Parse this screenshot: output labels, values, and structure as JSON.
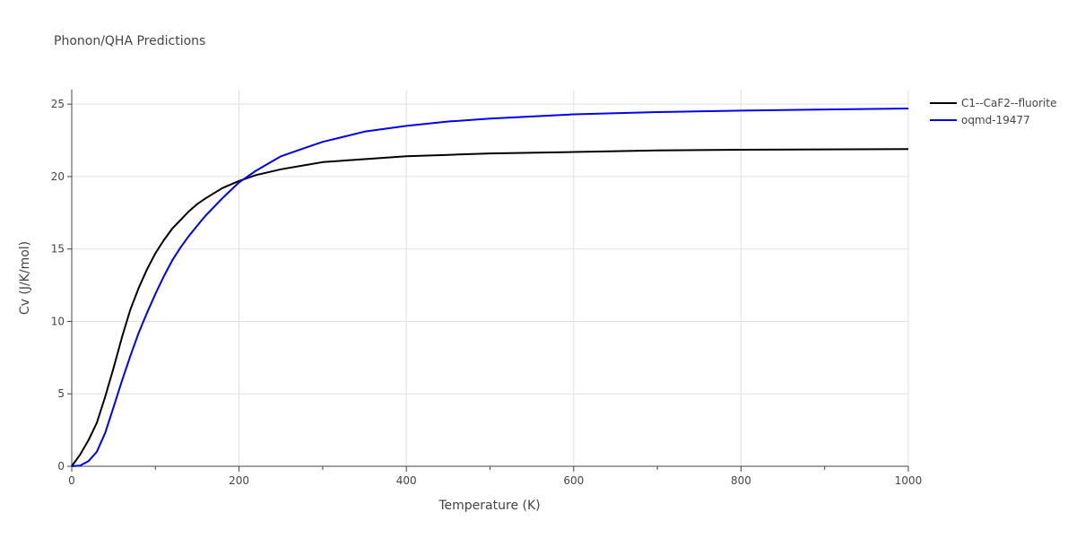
{
  "chart_data": {
    "type": "line",
    "title": "Phonon/QHA Predictions",
    "xlabel": "Temperature (K)",
    "ylabel": "Cv (J/K/mol)",
    "xlim": [
      0,
      1000
    ],
    "ylim": [
      0,
      26
    ],
    "x_ticks": [
      0,
      200,
      400,
      600,
      800,
      1000
    ],
    "y_ticks": [
      0,
      5,
      10,
      15,
      20,
      25
    ],
    "grid": true,
    "legend_position": "top-right outside",
    "series": [
      {
        "name": "C1--CaF2--fluorite",
        "color": "#000000",
        "x": [
          0,
          10,
          20,
          30,
          40,
          50,
          60,
          70,
          80,
          90,
          100,
          110,
          120,
          130,
          140,
          150,
          160,
          180,
          200,
          220,
          250,
          280,
          300,
          350,
          400,
          450,
          500,
          600,
          700,
          800,
          900,
          1000
        ],
        "y": [
          0,
          0.8,
          1.8,
          3.0,
          4.8,
          6.8,
          8.9,
          10.8,
          12.3,
          13.6,
          14.7,
          15.6,
          16.4,
          17.0,
          17.6,
          18.1,
          18.5,
          19.2,
          19.7,
          20.1,
          20.5,
          20.8,
          21.0,
          21.2,
          21.4,
          21.5,
          21.6,
          21.7,
          21.8,
          21.85,
          21.88,
          21.9
        ]
      },
      {
        "name": "oqmd-19477",
        "color": "#0000ee",
        "x": [
          0,
          10,
          20,
          30,
          40,
          50,
          60,
          70,
          80,
          90,
          100,
          110,
          120,
          130,
          140,
          150,
          160,
          180,
          200,
          220,
          250,
          280,
          300,
          350,
          400,
          450,
          500,
          600,
          700,
          800,
          900,
          1000
        ],
        "y": [
          0,
          0.05,
          0.35,
          1.0,
          2.3,
          4.1,
          5.9,
          7.6,
          9.2,
          10.6,
          11.9,
          13.1,
          14.2,
          15.1,
          15.9,
          16.6,
          17.3,
          18.5,
          19.6,
          20.4,
          21.4,
          22.0,
          22.4,
          23.1,
          23.5,
          23.8,
          24.0,
          24.3,
          24.45,
          24.55,
          24.63,
          24.7
        ]
      }
    ]
  }
}
